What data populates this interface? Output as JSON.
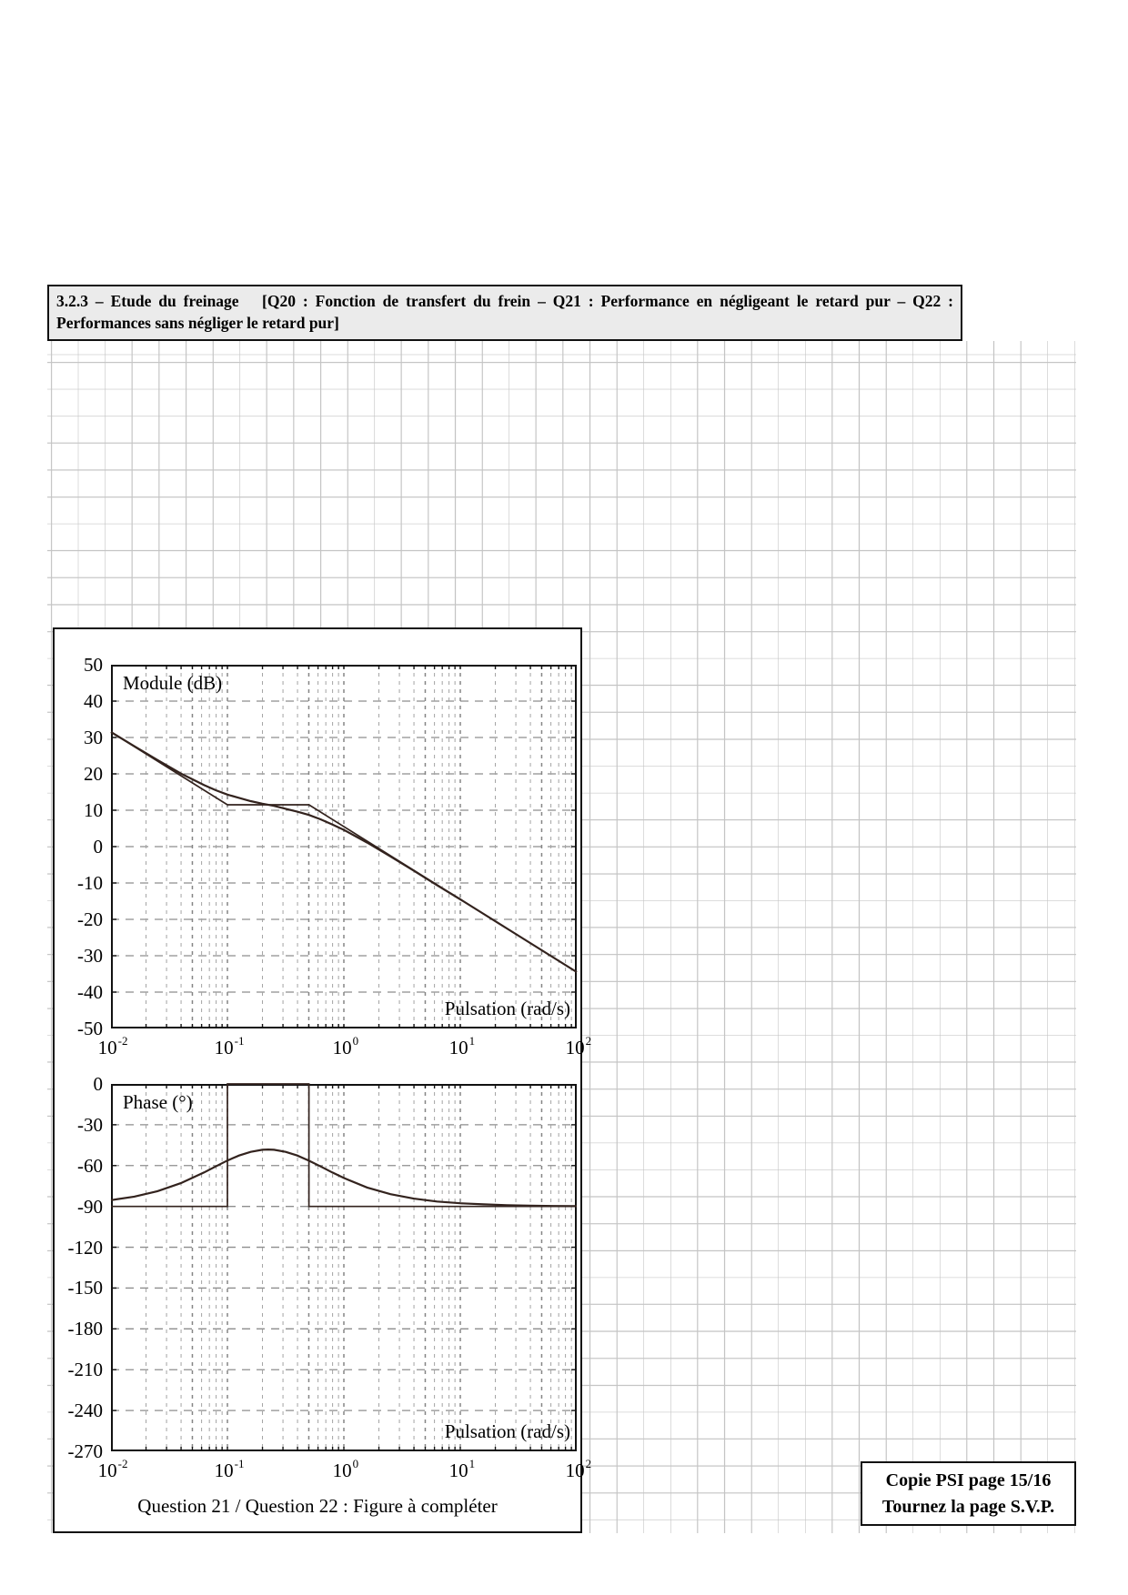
{
  "page": {
    "header": "3.2.3 – Etude du freinage  [Q20 : Fonction de transfert du frein – Q21 : Performance en négligeant le retard pur – Q22 : Performances sans négliger le retard pur]",
    "caption": "Question 21 / Question 22 : Figure à compléter",
    "footer_box": {
      "line1": "Copie PSI page 15/16",
      "line2": "Tournez la page S.V.P."
    }
  },
  "chart_data": [
    {
      "type": "line",
      "title": "Module (dB)",
      "xlabel": "Pulsation (rad/s)",
      "x_scale": "log10",
      "x_range": [
        0.01,
        100
      ],
      "x_ticks_exponents": [
        -2,
        -1,
        0,
        1,
        2
      ],
      "ylim": [
        -50,
        50
      ],
      "y_tick_step": 10,
      "y_ticks": [
        50,
        40,
        30,
        20,
        10,
        0,
        -10,
        -20,
        -30,
        -40,
        -50
      ],
      "grid": "log-dashed",
      "series": [
        {
          "name": "asymptotic-gain",
          "points": [
            [
              -2,
              31.5
            ],
            [
              -1,
              11.5
            ],
            [
              -0.3,
              11.5
            ],
            [
              2,
              -34.5
            ]
          ]
        },
        {
          "name": "exact-gain",
          "points": [
            [
              -2,
              31.5
            ],
            [
              -1.8,
              27.6
            ],
            [
              -1.6,
              23.8
            ],
            [
              -1.4,
              20.1
            ],
            [
              -1.2,
              16.9
            ],
            [
              -1.1,
              15.5
            ],
            [
              -1,
              14.3
            ],
            [
              -0.9,
              13.4
            ],
            [
              -0.8,
              12.5
            ],
            [
              -0.7,
              11.8
            ],
            [
              -0.6,
              11.2
            ],
            [
              -0.5,
              10.4
            ],
            [
              -0.4,
              9.6
            ],
            [
              -0.3,
              8.7
            ],
            [
              -0.2,
              7.5
            ],
            [
              -0.1,
              6.1
            ],
            [
              0,
              4.6
            ],
            [
              0.2,
              1.1
            ],
            [
              0.4,
              -2.7
            ],
            [
              0.6,
              -6.6
            ],
            [
              0.8,
              -10.6
            ],
            [
              1,
              -14.5
            ],
            [
              1.2,
              -18.5
            ],
            [
              1.4,
              -22.5
            ],
            [
              1.6,
              -26.5
            ],
            [
              1.8,
              -30.5
            ],
            [
              2,
              -34.5
            ]
          ]
        }
      ]
    },
    {
      "type": "line",
      "title": "Phase (°)",
      "xlabel": "Pulsation (rad/s)",
      "x_scale": "log10",
      "x_range": [
        0.01,
        100
      ],
      "x_ticks_exponents": [
        -2,
        -1,
        0,
        1,
        2
      ],
      "ylim": [
        -270,
        0
      ],
      "y_tick_step": 30,
      "y_ticks": [
        0,
        -30,
        -60,
        -90,
        -120,
        -150,
        -180,
        -210,
        -240,
        -270
      ],
      "grid": "log-dashed",
      "series": [
        {
          "name": "asymptotic-phase",
          "points": [
            [
              -2,
              -90
            ],
            [
              -1,
              -90
            ],
            [
              -1,
              0
            ],
            [
              -0.3,
              0
            ],
            [
              -0.3,
              -90
            ],
            [
              2,
              -90
            ]
          ]
        },
        {
          "name": "exact-phase",
          "points": [
            [
              -2,
              -85.4
            ],
            [
              -1.8,
              -82.8
            ],
            [
              -1.6,
              -78.8
            ],
            [
              -1.4,
              -72.9
            ],
            [
              -1.2,
              -65.0
            ],
            [
              -1.1,
              -60.6
            ],
            [
              -1,
              -56.3
            ],
            [
              -0.9,
              -52.6
            ],
            [
              -0.8,
              -49.9
            ],
            [
              -0.7,
              -48.4
            ],
            [
              -0.65,
              -48.2
            ],
            [
              -0.6,
              -48.4
            ],
            [
              -0.5,
              -49.9
            ],
            [
              -0.4,
              -52.6
            ],
            [
              -0.3,
              -56.4
            ],
            [
              -0.2,
              -60.6
            ],
            [
              -0.1,
              -65.0
            ],
            [
              0,
              -69.1
            ],
            [
              0.2,
              -76.1
            ],
            [
              0.4,
              -81.0
            ],
            [
              0.6,
              -84.3
            ],
            [
              0.8,
              -86.4
            ],
            [
              1,
              -87.7
            ],
            [
              1.2,
              -88.5
            ],
            [
              1.4,
              -89.1
            ],
            [
              1.6,
              -89.4
            ],
            [
              1.8,
              -89.7
            ],
            [
              2,
              -89.8
            ]
          ]
        }
      ]
    }
  ]
}
